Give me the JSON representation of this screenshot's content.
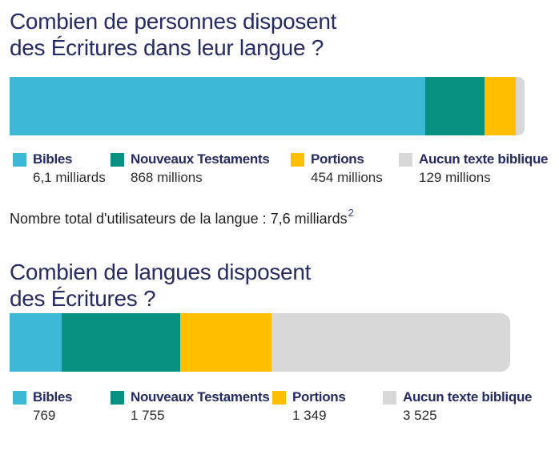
{
  "page": {
    "background": "#ffffff",
    "accent_navy": "#262B63"
  },
  "chart_data": [
    {
      "type": "bar",
      "stacked": true,
      "orientation": "horizontal",
      "title": "Combien de personnes disposent des Écritures dans leur langue ?",
      "title_line1": "Combien de personnes disposent",
      "title_line2": "des Écritures dans leur langue ?",
      "categories": [
        "Bibles",
        "Nouveaux Testaments",
        "Portions",
        "Aucun texte biblique"
      ],
      "values": [
        6100,
        868,
        454,
        129
      ],
      "values_unit": "millions de personnes",
      "value_labels": [
        "6,1 milliards",
        "868 millions",
        "454 millions",
        "129 millions"
      ],
      "colors": [
        "#3EB9D5",
        "#089181",
        "#FFBE00",
        "#D8D8D8"
      ],
      "legend_position": "bottom",
      "grid": false,
      "footnote_text": "Nombre total d'utilisateurs de la langue : 7,6 milliards",
      "footnote_superscript": "2"
    },
    {
      "type": "bar",
      "stacked": true,
      "orientation": "horizontal",
      "title": "Combien de langues disposent des Écritures ?",
      "title_line1": "Combien de langues disposent",
      "title_line2": "des Écritures ?",
      "categories": [
        "Bibles",
        "Nouveaux Testaments",
        "Portions",
        "Aucun texte biblique"
      ],
      "values": [
        769,
        1755,
        1349,
        3525
      ],
      "values_unit": "langues",
      "value_labels": [
        "769",
        "1 755",
        "1 349",
        "3 525"
      ],
      "colors": [
        "#3EB9D5",
        "#089181",
        "#FFBE00",
        "#D8D8D8"
      ],
      "legend_position": "bottom",
      "grid": false
    }
  ]
}
